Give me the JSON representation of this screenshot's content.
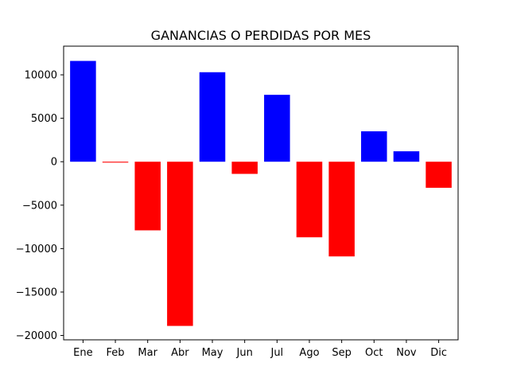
{
  "chart_data": {
    "type": "bar",
    "title": "GANANCIAS O PERDIDAS POR MES",
    "xlabel": "",
    "ylabel": "",
    "categories": [
      "Ene",
      "Feb",
      "Mar",
      "Abr",
      "May",
      "Jun",
      "Jul",
      "Ago",
      "Sep",
      "Oct",
      "Nov",
      "Dic"
    ],
    "values": [
      11600,
      -100,
      -7900,
      -18900,
      10300,
      -1400,
      7700,
      -8700,
      -10900,
      3500,
      1200,
      -3000
    ],
    "ylim": [
      -20500,
      13300
    ],
    "yticks": [
      -20000,
      -15000,
      -10000,
      -5000,
      0,
      5000,
      10000
    ],
    "ytick_labels": [
      "−20000",
      "−15000",
      "−10000",
      "−5000",
      "0",
      "5000",
      "10000"
    ],
    "grid": false,
    "legend": "none",
    "colors": {
      "positive": "#0000ff",
      "negative": "#ff0000",
      "axis": "#000000",
      "background": "#ffffff"
    }
  }
}
